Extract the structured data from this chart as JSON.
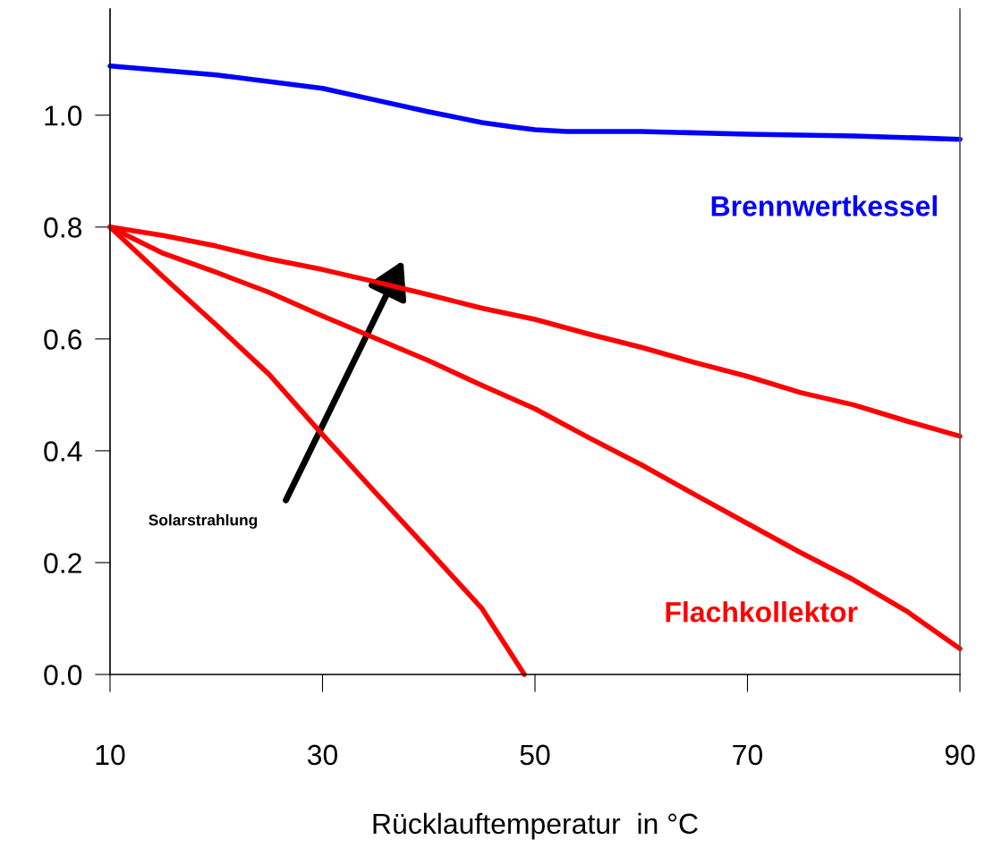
{
  "chart_data": {
    "type": "line",
    "xlabel": "Rücklauftemperatur  in °C",
    "xlim": [
      10,
      90
    ],
    "xticks": [
      10,
      30,
      50,
      70,
      90
    ],
    "ylim": [
      0,
      1.19
    ],
    "yticks": [
      {
        "value": 0,
        "label": "0.0"
      },
      {
        "value": 0.2,
        "label": "0.2"
      },
      {
        "value": 0.4,
        "label": "0.4"
      },
      {
        "value": 0.6,
        "label": "0.6"
      },
      {
        "value": 0.8,
        "label": "0.8"
      },
      {
        "value": 1.0,
        "label": "1.0"
      }
    ],
    "grid": false,
    "legend": false,
    "marker": "none",
    "line_style": "solid",
    "series": [
      {
        "name": "Brennwertkessel",
        "color": "#0000ff",
        "x": [
          10,
          20,
          30,
          35,
          40,
          45,
          48,
          50,
          53,
          60,
          70,
          80,
          90
        ],
        "values": [
          1.088,
          1.072,
          1.048,
          1.027,
          1.006,
          0.987,
          0.979,
          0.974,
          0.971,
          0.971,
          0.966,
          0.963,
          0.957
        ]
      },
      {
        "color": "#ff0000",
        "x": [
          10,
          15,
          20,
          25,
          30,
          35,
          40,
          45,
          50,
          55,
          60,
          65,
          70,
          75,
          80,
          85,
          90
        ],
        "values": [
          0.8,
          0.785,
          0.766,
          0.743,
          0.724,
          0.702,
          0.679,
          0.655,
          0.635,
          0.609,
          0.585,
          0.558,
          0.533,
          0.504,
          0.482,
          0.453,
          0.426
        ]
      },
      {
        "name": "Flachkollektor",
        "color": "#ff0000",
        "x": [
          10,
          15,
          20,
          25,
          30,
          35,
          40,
          45,
          50,
          55,
          60,
          65,
          70,
          75,
          80,
          85,
          90
        ],
        "values": [
          0.8,
          0.753,
          0.719,
          0.683,
          0.641,
          0.601,
          0.561,
          0.517,
          0.475,
          0.424,
          0.375,
          0.322,
          0.27,
          0.218,
          0.169,
          0.113,
          0.046
        ]
      },
      {
        "color": "#ff0000",
        "x": [
          10,
          15,
          20,
          25,
          30,
          35,
          40,
          45,
          49
        ],
        "values": [
          0.8,
          0.711,
          0.625,
          0.536,
          0.429,
          0.325,
          0.222,
          0.118,
          0.0
        ]
      }
    ],
    "annotations": [
      "Solarstrahlung"
    ]
  }
}
